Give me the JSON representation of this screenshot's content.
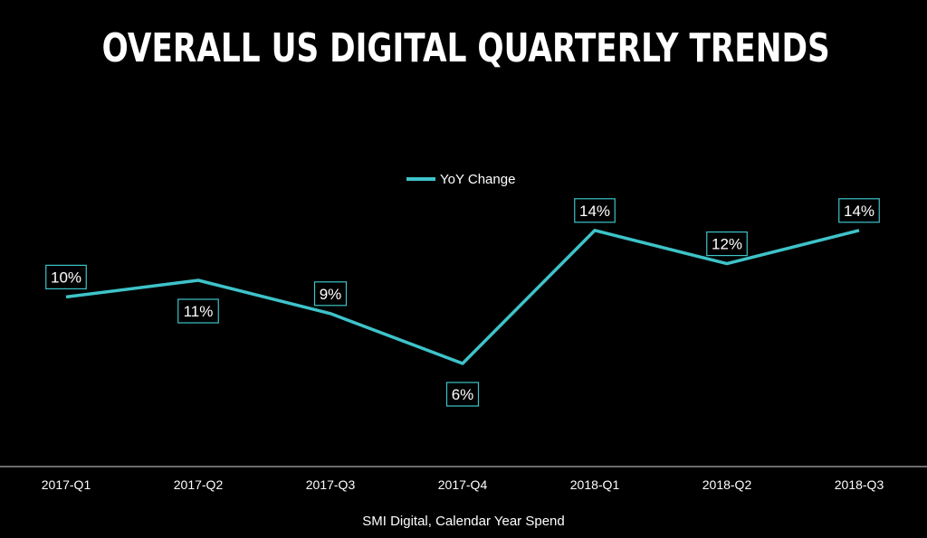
{
  "title": "OVERALL US DIGITAL QUARTERLY TRENDS",
  "chart_data": {
    "type": "line",
    "title": "OVERALL US DIGITAL QUARTERLY TRENDS",
    "xlabel": "SMI Digital, Calendar Year Spend",
    "ylabel": "",
    "categories": [
      "2017-Q1",
      "2017-Q2",
      "2017-Q3",
      "2017-Q4",
      "2018-Q1",
      "2018-Q2",
      "2018-Q3"
    ],
    "series": [
      {
        "name": "YoY Change",
        "values": [
          10,
          11,
          9,
          6,
          14,
          12,
          14
        ],
        "labels": [
          "10%",
          "11%",
          "9%",
          "6%",
          "14%",
          "12%",
          "14%"
        ],
        "color": "#3ec3c9"
      }
    ],
    "grid": false,
    "legend": "top-center"
  },
  "colors": {
    "background": "#000000",
    "text": "#ffffff",
    "line": "#3ec3c9",
    "axis": "#d9d9d9"
  }
}
